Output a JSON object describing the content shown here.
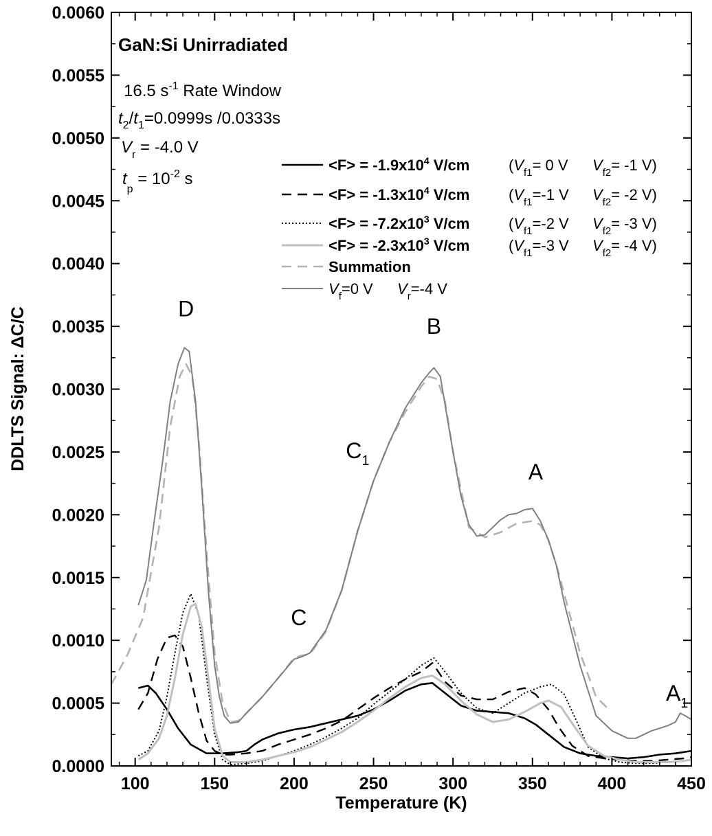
{
  "chart_data": {
    "type": "line",
    "xlabel": "Temperature (K)",
    "ylabel": "DDLTS Signal: ΔC/C",
    "xlim": [
      85,
      450
    ],
    "ylim": [
      0,
      0.006
    ],
    "x_ticks": [
      "100",
      "150",
      "200",
      "250",
      "300",
      "350",
      "400",
      "450"
    ],
    "y_ticks": [
      "0.0000",
      "0.0005",
      "0.0010",
      "0.0015",
      "0.0020",
      "0.0025",
      "0.0030",
      "0.0035",
      "0.0040",
      "0.0045",
      "0.0050",
      "0.0055",
      "0.0060"
    ],
    "grid": false,
    "legend_position": "upper right",
    "annotations": {
      "sample": "GaN:Si   Unirradiated",
      "rate_window": {
        "value": "16.5 s",
        "sup": "-1",
        "rest": " Rate Window"
      },
      "times": {
        "t2": "t",
        "t2sub": "2",
        "slash": "/",
        "t1": "t",
        "t1sub": "1",
        "value": "=0.0999s /0.0333s"
      },
      "vr": {
        "v": "V",
        "sub": "r",
        "value": " = -4.0 V"
      },
      "tp": {
        "t": "t",
        "sub": "p",
        "value": "  = 10",
        "sup": "-2",
        "unit": " s"
      }
    },
    "peaks": [
      {
        "label": "D",
        "sub": "",
        "x": 132,
        "y": 0.00358
      },
      {
        "label": "B",
        "sub": "",
        "x": 288,
        "y": 0.00344
      },
      {
        "label": "C",
        "sub": "1",
        "x": 240,
        "y": 0.00245
      },
      {
        "label": "A",
        "sub": "",
        "x": 352,
        "y": 0.00228
      },
      {
        "label": "C",
        "sub": "",
        "x": 203,
        "y": 0.00112
      },
      {
        "label": "A",
        "sub": "1",
        "x": 441,
        "y": 0.00052
      }
    ],
    "series": [
      {
        "name": "<F> = -1.9x10^4 V/cm",
        "legend": {
          "pre": "<F> = -1.9x10",
          "sup": "4",
          "post": " V/cm",
          "vf1": "= 0 V",
          "vf2": "=  -1 V)"
        },
        "color": "#000000",
        "width": 2.6,
        "dash": "",
        "x": [
          102,
          108,
          113,
          120,
          127,
          135,
          145,
          155,
          165,
          170,
          175,
          180,
          190,
          200,
          210,
          220,
          230,
          240,
          250,
          260,
          270,
          280,
          287,
          295,
          305,
          315,
          325,
          335,
          345,
          352,
          360,
          370,
          380,
          390,
          400,
          410,
          420,
          430,
          440,
          450
        ],
        "y": [
          0.00062,
          0.00064,
          0.00058,
          0.00045,
          0.0003,
          0.00017,
          0.0001,
          0.0001,
          0.00011,
          0.00012,
          0.00017,
          0.00021,
          0.00026,
          0.00029,
          0.00031,
          0.00034,
          0.00037,
          0.0004,
          0.00045,
          0.00052,
          0.0006,
          0.00065,
          0.00066,
          0.00058,
          0.00048,
          0.00044,
          0.00043,
          0.00042,
          0.00038,
          0.00033,
          0.00025,
          0.00015,
          0.0001,
          8e-05,
          7e-05,
          6e-05,
          7e-05,
          9e-05,
          0.0001,
          0.00012
        ]
      },
      {
        "name": "<F> = -1.3x10^4 V/cm",
        "legend": {
          "pre": "<F> = -1.3x10",
          "sup": "4",
          "post": " V/cm",
          "vf1": "=-1 V",
          "vf2": "=  -2 V)"
        },
        "color": "#000000",
        "width": 2.4,
        "dash": "14,9",
        "x": [
          102,
          108,
          114,
          120,
          125,
          130,
          135,
          140,
          145,
          150,
          155,
          160,
          170,
          180,
          190,
          200,
          210,
          220,
          230,
          240,
          250,
          260,
          270,
          280,
          287,
          295,
          305,
          315,
          325,
          335,
          345,
          352,
          360,
          367,
          375,
          385,
          395,
          405,
          415,
          425,
          435,
          445,
          450
        ],
        "y": [
          0.00045,
          0.00058,
          0.00085,
          0.00102,
          0.00104,
          0.00095,
          0.0007,
          0.00042,
          0.0002,
          0.00012,
          9e-05,
          9e-05,
          0.0001,
          0.00012,
          0.00017,
          0.00021,
          0.00025,
          0.0003,
          0.00036,
          0.00045,
          0.00054,
          0.00062,
          0.00069,
          0.00075,
          0.00082,
          0.00067,
          0.00056,
          0.00053,
          0.00053,
          0.00059,
          0.00062,
          0.00057,
          0.00045,
          0.0003,
          0.00016,
          8e-05,
          6e-05,
          5e-05,
          4e-05,
          4e-05,
          5e-05,
          6e-05,
          7e-05
        ]
      },
      {
        "name": "<F> = -7.2x10^3 V/cm",
        "legend": {
          "pre": "<F> = -7.2x10",
          "sup": "3",
          "post": " V/cm",
          "vf1": "=-2 V",
          "vf2": "=  -3 V)"
        },
        "color": "#000000",
        "width": 2,
        "dash": "2,3",
        "x": [
          102,
          108,
          115,
          120,
          125,
          130,
          135,
          140,
          145,
          150,
          155,
          160,
          170,
          180,
          190,
          200,
          210,
          220,
          230,
          240,
          250,
          260,
          270,
          280,
          288,
          295,
          305,
          315,
          325,
          335,
          345,
          355,
          362,
          370,
          378,
          385,
          395,
          405,
          415,
          425,
          435,
          445,
          450
        ],
        "y": [
          8e-05,
          0.00012,
          0.00028,
          0.00055,
          0.0009,
          0.00122,
          0.00137,
          0.0012,
          0.0007,
          0.00025,
          5e-05,
          1e-05,
          2e-05,
          4e-05,
          8e-05,
          0.00012,
          0.00017,
          0.00023,
          0.0003,
          0.00038,
          0.00049,
          0.00059,
          0.00069,
          0.0008,
          0.00086,
          0.00075,
          0.00058,
          0.00046,
          0.00042,
          0.0005,
          0.00058,
          0.00063,
          0.00065,
          0.00057,
          0.00035,
          0.00015,
          6e-05,
          3e-05,
          2e-05,
          2e-05,
          3e-05,
          4e-05,
          5e-05
        ]
      },
      {
        "name": "<F> = -2.3x10^3 V/cm",
        "legend": {
          "pre": "<F> = -2.3x10",
          "sup": "3",
          "post": " V/cm",
          "vf1": "=-3 V",
          "vf2": "=  -4 V)"
        },
        "color": "#c0c0c0",
        "width": 3,
        "dash": "",
        "x": [
          102,
          108,
          115,
          120,
          125,
          130,
          135,
          138,
          142,
          146,
          150,
          155,
          160,
          170,
          180,
          190,
          200,
          210,
          220,
          230,
          240,
          250,
          260,
          270,
          280,
          287,
          295,
          305,
          315,
          325,
          335,
          345,
          355,
          360,
          368,
          376,
          385,
          395,
          405,
          415,
          425,
          435,
          445,
          450
        ],
        "y": [
          5e-05,
          0.0001,
          0.00022,
          0.0004,
          0.0007,
          0.00105,
          0.00127,
          0.00129,
          0.0011,
          0.0007,
          0.0003,
          8e-05,
          3e-05,
          3e-05,
          5e-05,
          8e-05,
          0.00011,
          0.00015,
          0.00021,
          0.00027,
          0.00035,
          0.00044,
          0.00054,
          0.00063,
          0.0007,
          0.00072,
          0.00065,
          0.00052,
          0.00041,
          0.00035,
          0.00037,
          0.00043,
          0.0005,
          0.00052,
          0.00047,
          0.00032,
          0.00016,
          8e-05,
          5e-05,
          3e-05,
          3e-05,
          3e-05,
          4e-05,
          5e-05
        ]
      },
      {
        "name": "Summation",
        "legend": {
          "pre": "Summation",
          "sup": "",
          "post": "",
          "vf1": "",
          "vf2": ""
        },
        "color": "#b2b2b2",
        "width": 2.6,
        "dash": "14,9",
        "x": [
          85,
          95,
          105,
          115,
          122,
          128,
          132,
          136,
          140,
          145,
          150,
          155,
          160,
          165,
          170,
          180,
          190,
          200,
          205,
          210,
          220,
          230,
          240,
          250,
          260,
          270,
          280,
          285,
          290,
          295,
          300,
          310,
          320,
          330,
          340,
          350,
          355,
          360,
          365,
          370,
          380,
          390,
          398
        ],
        "y": [
          0.00065,
          0.00088,
          0.00118,
          0.0019,
          0.0027,
          0.0031,
          0.0032,
          0.0031,
          0.0026,
          0.0017,
          0.0009,
          0.0005,
          0.00035,
          0.00036,
          0.00042,
          0.00055,
          0.0007,
          0.00086,
          0.00088,
          0.00089,
          0.00107,
          0.0014,
          0.00187,
          0.00227,
          0.00258,
          0.00282,
          0.00302,
          0.0031,
          0.00308,
          0.0029,
          0.0025,
          0.0019,
          0.00182,
          0.00186,
          0.00193,
          0.00195,
          0.00192,
          0.0018,
          0.0016,
          0.00137,
          0.0009,
          0.00055,
          0.00045
        ]
      },
      {
        "name": "Vf=0 V   Vr=-4 V",
        "legend": {
          "pre": "",
          "sup": "",
          "post": "",
          "vf": "V",
          "vfsub": "f",
          "vfval": "=0 V",
          "vr": "V",
          "vrsub": "r",
          "vrval": "=-4 V"
        },
        "color": "#808080",
        "width": 2,
        "dash": "",
        "x": [
          102,
          107,
          112,
          117,
          122,
          127,
          131,
          134,
          138,
          142,
          146,
          150,
          153,
          156,
          160,
          165,
          170,
          180,
          190,
          200,
          205,
          210,
          220,
          230,
          240,
          250,
          260,
          270,
          280,
          285,
          288,
          292,
          296,
          300,
          305,
          310,
          315,
          320,
          325,
          330,
          335,
          340,
          345,
          350,
          355,
          360,
          365,
          370,
          380,
          390,
          400,
          410,
          415,
          420,
          425,
          430,
          435,
          440,
          443,
          446,
          450
        ],
        "y": [
          0.00128,
          0.00148,
          0.00195,
          0.0024,
          0.0029,
          0.0032,
          0.00333,
          0.0033,
          0.0029,
          0.0022,
          0.0014,
          0.0008,
          0.00055,
          0.0004,
          0.00034,
          0.00035,
          0.00042,
          0.00055,
          0.0007,
          0.00085,
          0.00087,
          0.0009,
          0.00108,
          0.0014,
          0.00187,
          0.00227,
          0.00258,
          0.00285,
          0.00305,
          0.00313,
          0.00317,
          0.0031,
          0.0028,
          0.0025,
          0.00215,
          0.00192,
          0.00183,
          0.00184,
          0.0019,
          0.00196,
          0.002,
          0.00201,
          0.00204,
          0.00205,
          0.00195,
          0.0018,
          0.0016,
          0.0013,
          0.0008,
          0.0004,
          0.00028,
          0.00022,
          0.00022,
          0.00025,
          0.00028,
          0.0003,
          0.00032,
          0.00035,
          0.00042,
          0.0004,
          0.00037
        ]
      }
    ]
  }
}
